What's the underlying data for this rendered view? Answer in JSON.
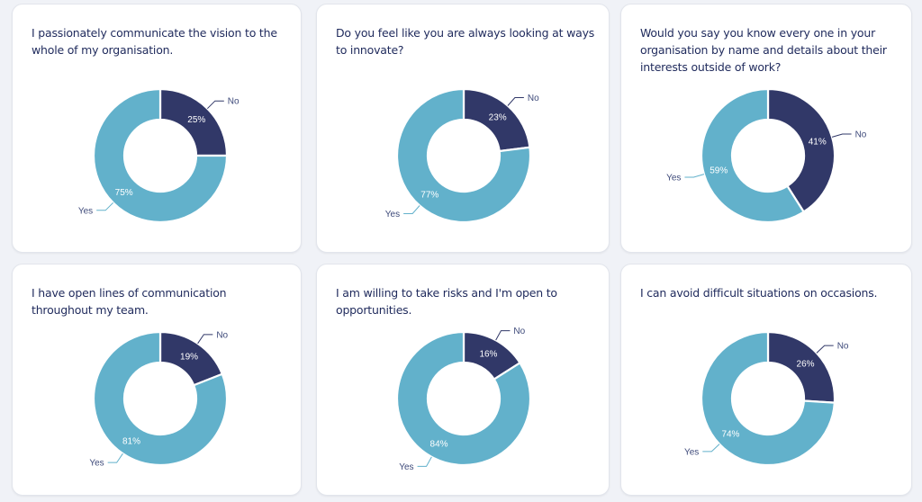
{
  "colors": {
    "yes": "#62b1cb",
    "no": "#313868",
    "label_text": "#3e4a7a",
    "title_text": "#1f2a5c",
    "card_bg": "#ffffff",
    "page_bg": "#f0f2f7"
  },
  "chart_data": [
    {
      "type": "pie",
      "title": "I passionately communicate the vision to the whole of my organisation.",
      "categories": [
        "No",
        "Yes"
      ],
      "values": [
        25,
        75
      ],
      "labels": [
        "25%",
        "75%"
      ],
      "legend": "none"
    },
    {
      "type": "pie",
      "title": "Do you feel like you are always looking at ways to innovate?",
      "categories": [
        "No",
        "Yes"
      ],
      "values": [
        23,
        77
      ],
      "labels": [
        "23%",
        "77%"
      ],
      "legend": "none"
    },
    {
      "type": "pie",
      "title": "Would you say you know every one in your organisation by name and details about their interests outside of work?",
      "categories": [
        "No",
        "Yes"
      ],
      "values": [
        41,
        59
      ],
      "labels": [
        "41%",
        "59%"
      ],
      "legend": "none"
    },
    {
      "type": "pie",
      "title": "I have open lines of communication throughout my team.",
      "categories": [
        "No",
        "Yes"
      ],
      "values": [
        19,
        81
      ],
      "labels": [
        "19%",
        "81%"
      ],
      "legend": "none"
    },
    {
      "type": "pie",
      "title": "I am willing to take risks and I'm open to opportunities.",
      "categories": [
        "No",
        "Yes"
      ],
      "values": [
        16,
        84
      ],
      "labels": [
        "16%",
        "84%"
      ],
      "legend": "none"
    },
    {
      "type": "pie",
      "title": "I can avoid difficult situations on occasions.",
      "categories": [
        "No",
        "Yes"
      ],
      "values": [
        26,
        74
      ],
      "labels": [
        "26%",
        "74%"
      ],
      "legend": "none"
    }
  ]
}
